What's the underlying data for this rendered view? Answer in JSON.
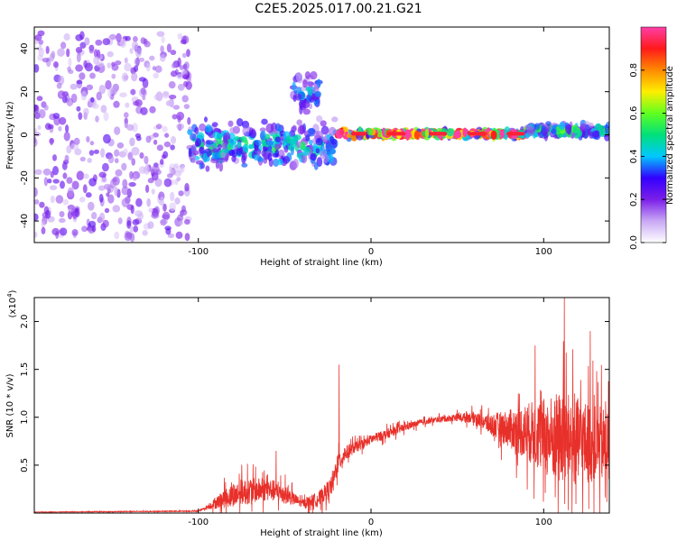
{
  "title": "C2E5.2025.017.00.21.G21",
  "chart_data": [
    {
      "type": "heatmap",
      "xlabel": "Height of straight line (km)",
      "ylabel": "Frequency (Hz)",
      "xlim": [
        -195,
        138
      ],
      "ylim": [
        -50,
        50
      ],
      "x_ticks": [
        -100,
        0,
        100
      ],
      "y_ticks": [
        -40,
        -20,
        0,
        20,
        40
      ],
      "colorbar": {
        "label": "Normalized spectral amplitude",
        "range": [
          0,
          1
        ],
        "ticks": [
          "0.0",
          "0.2",
          "0.4",
          "0.6",
          "0.8"
        ],
        "colors": [
          "#ffffff",
          "#c9a8f5",
          "#7b1fe8",
          "#3300ff",
          "#00c8ff",
          "#00e07a",
          "#60ff20",
          "#ffee00",
          "#ff8a00",
          "#ff1a1a",
          "#ff3fa8"
        ]
      },
      "regions": [
        {
          "x": [
            -195,
            -105
          ],
          "freq_spread": 48,
          "amplitude": 0.15,
          "note": "broadband scattered energy"
        },
        {
          "x": [
            -105,
            -20
          ],
          "freq_center": -5,
          "freq_spread": 15,
          "amplitude": 0.3
        },
        {
          "x": [
            -45,
            -30
          ],
          "freq_center": 20,
          "freq_spread": 12,
          "amplitude": 0.25
        },
        {
          "x": [
            -20,
            90
          ],
          "freq_center": 0.5,
          "freq_spread": 2,
          "amplitude": 0.75
        },
        {
          "x": [
            90,
            138
          ],
          "freq_center": 2,
          "freq_spread": 4,
          "amplitude": 0.35
        }
      ]
    },
    {
      "type": "line",
      "xlabel": "Height of straight line (km)",
      "ylabel": "SNR (10 * v/v)",
      "multiplier_label": "(x10",
      "multiplier_exp": "4",
      "xlim": [
        -195,
        138
      ],
      "ylim": [
        0,
        2.25
      ],
      "x_ticks": [
        -100,
        0,
        100
      ],
      "y_ticks": [
        "0.5",
        "1.0",
        "1.5",
        "2.0"
      ],
      "color": "#e8302a",
      "envelope_x": [
        -195,
        -100,
        -95,
        -85,
        -75,
        -60,
        -50,
        -40,
        -30,
        -22,
        -20,
        -15,
        -10,
        -5,
        0,
        10,
        20,
        30,
        40,
        50,
        60,
        65,
        70,
        80,
        90,
        100,
        110,
        120,
        130,
        138
      ],
      "envelope_y": [
        0.01,
        0.02,
        0.06,
        0.15,
        0.22,
        0.25,
        0.2,
        0.1,
        0.15,
        0.3,
        0.5,
        0.62,
        0.68,
        0.72,
        0.77,
        0.83,
        0.9,
        0.95,
        0.98,
        1.0,
        1.0,
        0.95,
        0.92,
        0.88,
        0.85,
        0.8,
        0.78,
        0.75,
        0.72,
        0.7
      ],
      "noise_y": [
        0.002,
        0.005,
        0.02,
        0.1,
        0.14,
        0.12,
        0.1,
        0.04,
        0.08,
        0.1,
        0.12,
        0.08,
        0.06,
        0.05,
        0.05,
        0.05,
        0.04,
        0.03,
        0.03,
        0.04,
        0.06,
        0.08,
        0.12,
        0.2,
        0.3,
        0.4,
        0.5,
        0.45,
        0.4,
        0.4
      ],
      "peaks": [
        {
          "x": -18.5,
          "y": 1.55
        },
        {
          "x": -55,
          "y": 0.65
        },
        {
          "x": 112,
          "y": 2.25
        },
        {
          "x": 95,
          "y": 1.75
        },
        {
          "x": 127,
          "y": 1.9
        }
      ]
    }
  ]
}
